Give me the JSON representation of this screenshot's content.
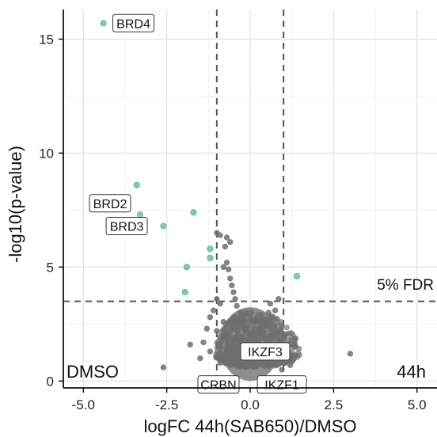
{
  "chart_data": {
    "type": "scatter",
    "title": "",
    "xlabel": "logFC 44h(SAB650)/DMSO",
    "ylabel": "-log10(p-value)",
    "xlim": [
      -5.6,
      5.6
    ],
    "ylim": [
      -0.3,
      16.3
    ],
    "x_ticks": [
      -5.0,
      -2.5,
      0.0,
      2.5,
      5.0
    ],
    "x_tick_labels": [
      "-5.0",
      "-2.5",
      "0.0",
      "2.5",
      "5.0"
    ],
    "y_ticks": [
      0,
      5,
      10,
      15
    ],
    "y_tick_labels": [
      "0",
      "5",
      "10",
      "15"
    ],
    "grid": true,
    "logfc_thresholds": [
      -1,
      1
    ],
    "fdr_threshold_y": 3.5,
    "fdr_label": "5% FDR",
    "left_label": "DMSO",
    "right_label": "44h",
    "colors": {
      "significant": "#66c2a5",
      "background": "#6e6e6e",
      "threshold": "#555555"
    },
    "series": [
      {
        "role": "significant",
        "x": [
          -4.4,
          -3.4,
          -3.3,
          -2.6,
          -1.7,
          -1.2,
          -1.2,
          -1.9,
          -1.95,
          1.4
        ],
        "y": [
          15.7,
          8.6,
          7.3,
          6.8,
          7.4,
          5.8,
          5.4,
          5.0,
          3.9,
          4.6
        ]
      },
      {
        "role": "background",
        "x": [
          -1.0,
          -0.9,
          -0.8,
          -0.7,
          -0.65,
          -0.6,
          -0.7,
          -0.6,
          -0.75,
          -0.55,
          -0.5,
          -0.45,
          -0.4,
          -0.3,
          -1.2,
          -1.3,
          -1.4,
          -1.5,
          -0.9,
          -1.1,
          -1.0,
          -0.8,
          -0.7,
          -0.5,
          -0.35,
          0.35,
          0.45,
          0.55,
          0.6,
          0.7,
          0.8,
          0.9,
          1.0,
          1.1,
          1.2,
          0.5,
          0.4,
          0.65,
          0.75,
          0.3,
          0.85,
          3.0,
          -2.6,
          -1.8,
          -1.2,
          -1.0,
          -0.9,
          -0.6,
          0.95
        ],
        "y": [
          6.5,
          6.4,
          5.0,
          5.2,
          4.9,
          4.5,
          6.3,
          6.1,
          5.9,
          4.2,
          3.9,
          3.6,
          3.3,
          3.0,
          2.8,
          2.3,
          1.7,
          1.0,
          3.4,
          3.1,
          2.2,
          2.6,
          2.0,
          2.4,
          1.8,
          2.0,
          2.5,
          3.0,
          3.4,
          2.7,
          2.2,
          1.8,
          1.4,
          1.0,
          0.7,
          1.6,
          1.2,
          2.8,
          3.1,
          2.3,
          3.6,
          1.2,
          0.6,
          1.6,
          1.3,
          3.6,
          0.8,
          2.6,
          0.5
        ]
      }
    ],
    "cloud": {
      "center": [
        0.0,
        1.15
      ],
      "half_width": [
        1.05,
        1.5
      ],
      "half_height": [
        0.55,
        1.9
      ]
    },
    "annotations": [
      {
        "text": "BRD4",
        "point": [
          -4.4,
          15.7
        ]
      },
      {
        "text": "BRD2",
        "point": [
          -3.4,
          8.6
        ]
      },
      {
        "text": "BRD3",
        "point": [
          -3.3,
          7.3
        ]
      },
      {
        "text": "IKZF3",
        "point": [
          0.3,
          1.3
        ]
      },
      {
        "text": "CRBN",
        "point": [
          -1.0,
          0.1
        ]
      },
      {
        "text": "IKZF1",
        "point": [
          0.6,
          0.1
        ]
      }
    ]
  }
}
